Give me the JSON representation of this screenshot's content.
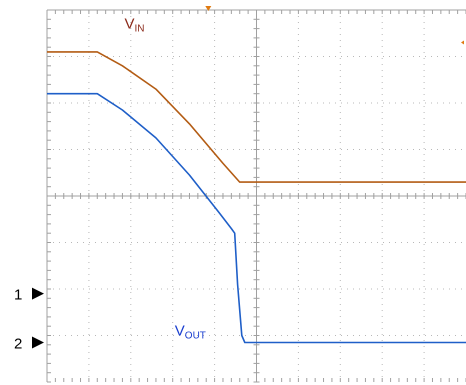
{
  "chart_data": {
    "type": "line",
    "title": "",
    "xlabel": "",
    "ylabel": "",
    "grid": true,
    "xlim": [
      0,
      10
    ],
    "ylim": [
      0,
      8
    ],
    "x_divisions": 10,
    "y_divisions": 8,
    "series": [
      {
        "name": "VIN",
        "label_main": "V",
        "label_sub": "IN",
        "color": "#b35c14",
        "x": [
          0,
          1.2,
          1.8,
          2.6,
          3.4,
          4.2,
          4.6,
          10
        ],
        "y": [
          7.1,
          7.1,
          6.8,
          6.3,
          5.55,
          4.7,
          4.3,
          4.3
        ]
      },
      {
        "name": "VOUT",
        "label_main": "V",
        "label_sub": "OUT",
        "color": "#1f5fc8",
        "x": [
          0,
          1.2,
          1.8,
          2.6,
          3.4,
          4.1,
          4.4,
          4.48,
          4.55,
          4.65,
          4.72,
          10
        ],
        "y": [
          6.2,
          6.2,
          5.85,
          5.25,
          4.45,
          3.65,
          3.3,
          3.2,
          2.1,
          1.0,
          0.85,
          0.85
        ]
      }
    ],
    "channel_markers": [
      {
        "label": "1",
        "y": 1.9
      },
      {
        "label": "2",
        "y": 0.85
      }
    ],
    "trigger_marker_color": "#e07a10"
  }
}
